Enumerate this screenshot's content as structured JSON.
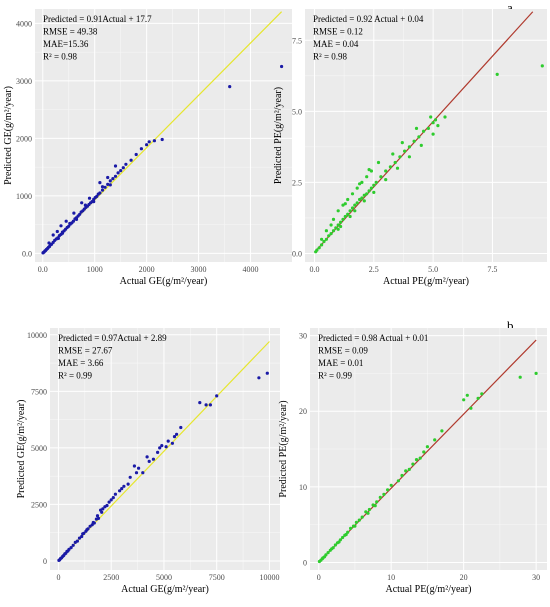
{
  "panel_labels": [
    "a",
    "b"
  ],
  "chart_data": [
    {
      "type": "scatter",
      "title": "",
      "xlabel": "Actual GE(g/m²/year)",
      "ylabel": "Predicted GE(g/m²/year)",
      "xlim": [
        -150,
        4800
      ],
      "ylim": [
        -150,
        4250
      ],
      "xticks": [
        0,
        1000,
        2000,
        3000,
        4000
      ],
      "xtick_labels": [
        "0.0",
        "1000",
        "2000",
        "3000",
        "4000"
      ],
      "yticks": [
        0,
        1000,
        2000,
        3000,
        4000
      ],
      "ytick_labels": [
        "0.0",
        "1000",
        "2000",
        "3000",
        "4000"
      ],
      "grid": true,
      "point_color": "#1a1aa6",
      "line_color": "#e6e62e",
      "fit_line": {
        "slope": 0.91,
        "intercept": 17.7,
        "x_range": [
          0,
          4600
        ]
      },
      "stats": [
        "Predicted = 0.91Actual + 17.7",
        "RMSE = 49.38",
        "MAE=15.36",
        "R² = 0.98"
      ],
      "points": [
        [
          5,
          8
        ],
        [
          15,
          18
        ],
        [
          25,
          24
        ],
        [
          40,
          42
        ],
        [
          55,
          50
        ],
        [
          70,
          68
        ],
        [
          90,
          85
        ],
        [
          110,
          105
        ],
        [
          130,
          120
        ],
        [
          150,
          150
        ],
        [
          170,
          160
        ],
        [
          200,
          190
        ],
        [
          230,
          225
        ],
        [
          260,
          250
        ],
        [
          290,
          270
        ],
        [
          320,
          310
        ],
        [
          350,
          330
        ],
        [
          380,
          370
        ],
        [
          410,
          390
        ],
        [
          440,
          420
        ],
        [
          470,
          450
        ],
        [
          500,
          470
        ],
        [
          530,
          510
        ],
        [
          560,
          530
        ],
        [
          590,
          560
        ],
        [
          620,
          600
        ],
        [
          650,
          620
        ],
        [
          680,
          650
        ],
        [
          710,
          680
        ],
        [
          740,
          720
        ],
        [
          770,
          740
        ],
        [
          800,
          770
        ],
        [
          830,
          800
        ],
        [
          860,
          820
        ],
        [
          890,
          850
        ],
        [
          920,
          880
        ],
        [
          950,
          900
        ],
        [
          980,
          940
        ],
        [
          1010,
          970
        ],
        [
          1040,
          990
        ],
        [
          1070,
          1030
        ],
        [
          1100,
          1050
        ],
        [
          1150,
          1100
        ],
        [
          1200,
          1150
        ],
        [
          1250,
          1200
        ],
        [
          1300,
          1260
        ],
        [
          1350,
          1300
        ],
        [
          1400,
          1340
        ],
        [
          1450,
          1400
        ],
        [
          1500,
          1440
        ],
        [
          1550,
          1490
        ],
        [
          1600,
          1550
        ],
        [
          1700,
          1620
        ],
        [
          1800,
          1720
        ],
        [
          1900,
          1820
        ],
        [
          2000,
          1890
        ],
        [
          2050,
          1940
        ],
        [
          2150,
          1960
        ],
        [
          2300,
          1980
        ],
        [
          3600,
          2900
        ],
        [
          4600,
          3250
        ],
        [
          120,
          180
        ],
        [
          200,
          320
        ],
        [
          350,
          480
        ],
        [
          280,
          380
        ],
        [
          450,
          560
        ],
        [
          600,
          700
        ],
        [
          750,
          880
        ],
        [
          900,
          960
        ],
        [
          1100,
          1230
        ],
        [
          1250,
          1320
        ],
        [
          1400,
          1520
        ],
        [
          1150,
          1160
        ],
        [
          820,
          840
        ],
        [
          520,
          520
        ],
        [
          380,
          350
        ],
        [
          300,
          260
        ],
        [
          650,
          590
        ],
        [
          980,
          900
        ],
        [
          1300,
          1190
        ]
      ]
    },
    {
      "type": "scatter",
      "title": "",
      "xlabel": "Actual PE(g/m²/year)",
      "ylabel": "Predicted PE(g/m²/year)",
      "xlim": [
        -0.4,
        9.8
      ],
      "ylim": [
        -0.3,
        8.6
      ],
      "xticks": [
        0,
        2.5,
        5,
        7.5
      ],
      "xtick_labels": [
        "0.0",
        "2.5",
        "5.0",
        "7.5"
      ],
      "yticks": [
        0,
        2.5,
        5,
        7.5
      ],
      "ytick_labels": [
        "0.0",
        "2.5",
        "5.0",
        "7.5"
      ],
      "grid": true,
      "point_color": "#2ecc2e",
      "line_color": "#b03a2e",
      "fit_line": {
        "slope": 0.92,
        "intercept": 0.04,
        "x_range": [
          0,
          9.2
        ]
      },
      "stats": [
        "Predicted = 0.92 Actual + 0.04",
        "RMSE = 0.12",
        "MAE = 0.04",
        "R² = 0.98"
      ],
      "points": [
        [
          0.05,
          0.06
        ],
        [
          0.1,
          0.12
        ],
        [
          0.2,
          0.2
        ],
        [
          0.3,
          0.3
        ],
        [
          0.4,
          0.42
        ],
        [
          0.5,
          0.5
        ],
        [
          0.6,
          0.62
        ],
        [
          0.7,
          0.7
        ],
        [
          0.8,
          0.8
        ],
        [
          0.9,
          0.9
        ],
        [
          1.0,
          1.0
        ],
        [
          1.1,
          1.1
        ],
        [
          1.2,
          1.2
        ],
        [
          1.3,
          1.3
        ],
        [
          1.4,
          1.38
        ],
        [
          1.5,
          1.5
        ],
        [
          1.6,
          1.6
        ],
        [
          1.7,
          1.7
        ],
        [
          1.8,
          1.78
        ],
        [
          1.9,
          1.9
        ],
        [
          2.0,
          1.95
        ],
        [
          2.1,
          2.05
        ],
        [
          2.2,
          2.1
        ],
        [
          2.3,
          2.2
        ],
        [
          2.4,
          2.3
        ],
        [
          2.5,
          2.4
        ],
        [
          2.6,
          2.5
        ],
        [
          2.8,
          2.7
        ],
        [
          3.0,
          2.9
        ],
        [
          3.2,
          3.05
        ],
        [
          3.4,
          3.2
        ],
        [
          3.6,
          3.4
        ],
        [
          3.8,
          3.6
        ],
        [
          4.0,
          3.75
        ],
        [
          4.2,
          3.95
        ],
        [
          4.4,
          4.1
        ],
        [
          4.6,
          4.3
        ],
        [
          4.8,
          4.4
        ],
        [
          5.0,
          4.6
        ],
        [
          5.2,
          4.5
        ],
        [
          5.5,
          4.8
        ],
        [
          7.7,
          6.3
        ],
        [
          9.6,
          6.6
        ],
        [
          0.5,
          0.8
        ],
        [
          0.8,
          1.2
        ],
        [
          1.0,
          1.5
        ],
        [
          1.2,
          1.7
        ],
        [
          1.4,
          1.9
        ],
        [
          1.6,
          2.1
        ],
        [
          1.8,
          2.3
        ],
        [
          2.0,
          2.5
        ],
        [
          2.2,
          2.7
        ],
        [
          2.4,
          2.9
        ],
        [
          1.5,
          1.3
        ],
        [
          1.0,
          0.85
        ],
        [
          2.5,
          2.15
        ],
        [
          3.0,
          2.6
        ],
        [
          3.5,
          3.0
        ],
        [
          4.0,
          3.4
        ],
        [
          4.5,
          3.8
        ],
        [
          5.0,
          4.2
        ],
        [
          0.3,
          0.5
        ],
        [
          0.7,
          1.0
        ],
        [
          1.3,
          1.75
        ],
        [
          1.9,
          2.45
        ],
        [
          2.3,
          2.95
        ],
        [
          2.7,
          3.2
        ],
        [
          3.3,
          3.5
        ],
        [
          3.7,
          3.9
        ],
        [
          4.3,
          4.4
        ],
        [
          4.9,
          4.8
        ],
        [
          5.1,
          4.7
        ],
        [
          1.1,
          0.95
        ],
        [
          1.7,
          1.5
        ],
        [
          2.1,
          1.85
        ]
      ]
    },
    {
      "type": "scatter",
      "title": "",
      "xlabel": "Actual GE(g/m²/year)",
      "ylabel": "Predicted GE(g/m²/year)",
      "xlim": [
        -400,
        10500
      ],
      "ylim": [
        -400,
        10300
      ],
      "xticks": [
        0,
        2500,
        5000,
        7500,
        10000
      ],
      "xtick_labels": [
        "0",
        "2500",
        "5000",
        "7500",
        "10000"
      ],
      "yticks": [
        0,
        2500,
        5000,
        7500,
        10000
      ],
      "ytick_labels": [
        "0",
        "2500",
        "5000",
        "7500",
        "10000"
      ],
      "grid": true,
      "point_color": "#1a1aa6",
      "line_color": "#e6e62e",
      "fit_line": {
        "slope": 0.97,
        "intercept": 2.89,
        "x_range": [
          0,
          10000
        ]
      },
      "stats": [
        "Predicted = 0.97Actual + 2.89",
        "RMSE = 27.67",
        "MAE = 3.66",
        "R² = 0.99"
      ],
      "points": [
        [
          20,
          25
        ],
        [
          60,
          55
        ],
        [
          100,
          110
        ],
        [
          150,
          140
        ],
        [
          200,
          200
        ],
        [
          250,
          240
        ],
        [
          300,
          310
        ],
        [
          350,
          340
        ],
        [
          400,
          420
        ],
        [
          450,
          440
        ],
        [
          500,
          510
        ],
        [
          600,
          590
        ],
        [
          700,
          690
        ],
        [
          800,
          820
        ],
        [
          900,
          880
        ],
        [
          1000,
          1010
        ],
        [
          1100,
          1080
        ],
        [
          1200,
          1220
        ],
        [
          1300,
          1310
        ],
        [
          1400,
          1420
        ],
        [
          1500,
          1530
        ],
        [
          1600,
          1600
        ],
        [
          1700,
          1680
        ],
        [
          1800,
          1850
        ],
        [
          1900,
          1880
        ],
        [
          2000,
          2250
        ],
        [
          2100,
          2300
        ],
        [
          2200,
          2400
        ],
        [
          2400,
          2600
        ],
        [
          2500,
          2700
        ],
        [
          2700,
          2950
        ],
        [
          2900,
          3100
        ],
        [
          3100,
          3300
        ],
        [
          3300,
          3400
        ],
        [
          3600,
          4200
        ],
        [
          3800,
          4100
        ],
        [
          4000,
          3900
        ],
        [
          4200,
          4600
        ],
        [
          4500,
          4500
        ],
        [
          4700,
          4800
        ],
        [
          4900,
          5100
        ],
        [
          5200,
          5300
        ],
        [
          5400,
          5200
        ],
        [
          5600,
          5600
        ],
        [
          5800,
          5900
        ],
        [
          6700,
          7000
        ],
        [
          7000,
          6900
        ],
        [
          7200,
          6900
        ],
        [
          7500,
          7300
        ],
        [
          9500,
          8100
        ],
        [
          9900,
          8300
        ],
        [
          1150,
          1200
        ],
        [
          1350,
          1380
        ],
        [
          1650,
          1700
        ],
        [
          1850,
          2000
        ],
        [
          2050,
          2150
        ],
        [
          2300,
          2450
        ],
        [
          2600,
          2800
        ],
        [
          3000,
          3200
        ],
        [
          3400,
          3700
        ],
        [
          3700,
          3900
        ],
        [
          4300,
          4400
        ],
        [
          4800,
          5000
        ],
        [
          5100,
          5050
        ],
        [
          5500,
          5500
        ]
      ]
    },
    {
      "type": "scatter",
      "title": "",
      "xlabel": "Actual PE(g/m²/year)",
      "ylabel": "Predicted PE(g/m²/year)",
      "xlim": [
        -1.2,
        31.5
      ],
      "ylim": [
        -1.0,
        31.0
      ],
      "xticks": [
        0,
        10,
        20,
        30
      ],
      "xtick_labels": [
        "0",
        "10",
        "20",
        "30"
      ],
      "yticks": [
        0,
        10,
        20,
        30
      ],
      "ytick_labels": [
        "0",
        "10",
        "20",
        "30"
      ],
      "grid": true,
      "point_color": "#2ecc2e",
      "line_color": "#b03a2e",
      "fit_line": {
        "slope": 0.98,
        "intercept": 0.01,
        "x_range": [
          0,
          30
        ]
      },
      "stats": [
        "Predicted = 0.98 Actual + 0.01",
        "RMSE = 0.09",
        "MAE = 0.01",
        "R² = 0.99"
      ],
      "points": [
        [
          0.1,
          0.12
        ],
        [
          0.3,
          0.3
        ],
        [
          0.5,
          0.5
        ],
        [
          0.8,
          0.75
        ],
        [
          1.0,
          1.0
        ],
        [
          1.3,
          1.3
        ],
        [
          1.6,
          1.6
        ],
        [
          2.0,
          1.95
        ],
        [
          2.3,
          2.3
        ],
        [
          2.6,
          2.6
        ],
        [
          3.0,
          3.0
        ],
        [
          3.3,
          3.3
        ],
        [
          3.6,
          3.6
        ],
        [
          4.0,
          4.0
        ],
        [
          4.4,
          4.5
        ],
        [
          4.8,
          4.8
        ],
        [
          5.2,
          5.3
        ],
        [
          5.6,
          5.6
        ],
        [
          6.0,
          6.0
        ],
        [
          6.5,
          6.7
        ],
        [
          7.0,
          7.0
        ],
        [
          7.5,
          7.6
        ],
        [
          8.0,
          8.0
        ],
        [
          8.5,
          8.6
        ],
        [
          9.0,
          9.0
        ],
        [
          10.0,
          10.2
        ],
        [
          11.0,
          10.8
        ],
        [
          12.0,
          12.1
        ],
        [
          12.5,
          12.3
        ],
        [
          13.0,
          13.0
        ],
        [
          13.5,
          13.6
        ],
        [
          14.0,
          13.8
        ],
        [
          15.0,
          15.3
        ],
        [
          16.0,
          16.2
        ],
        [
          17.0,
          17.4
        ],
        [
          20.0,
          21.5
        ],
        [
          20.5,
          22.1
        ],
        [
          21.0,
          20.4
        ],
        [
          22.0,
          21.7
        ],
        [
          22.5,
          22.3
        ],
        [
          27.8,
          24.5
        ],
        [
          30.0,
          25.0
        ],
        [
          5.0,
          4.8
        ],
        [
          6.8,
          6.5
        ],
        [
          7.8,
          7.5
        ],
        [
          9.5,
          9.6
        ],
        [
          11.5,
          11.5
        ],
        [
          14.5,
          14.6
        ],
        [
          3.8,
          3.7
        ],
        [
          2.8,
          2.7
        ],
        [
          1.8,
          1.8
        ],
        [
          0.6,
          0.6
        ]
      ]
    }
  ]
}
